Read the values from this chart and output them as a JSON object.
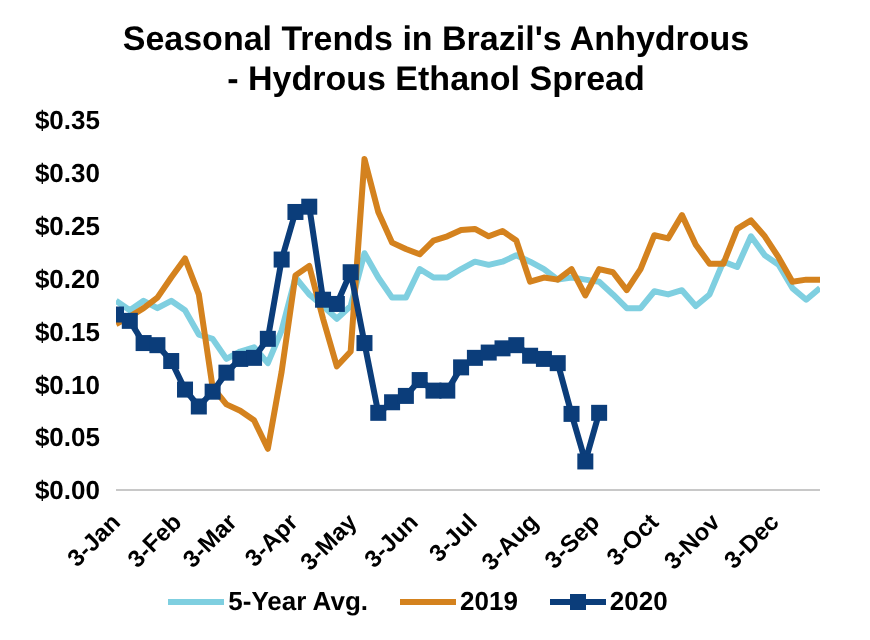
{
  "chart_data": {
    "type": "line",
    "title": "Seasonal Trends in Brazil's Anhydrous - Hydrous Ethanol Spread",
    "x": [
      "--01-03",
      "--01-10",
      "--01-17",
      "--01-24",
      "--01-31",
      "--02-07",
      "--02-14",
      "--02-21",
      "--02-28",
      "--03-07",
      "--03-14",
      "--03-21",
      "--03-28",
      "--04-04",
      "--04-11",
      "--04-18",
      "--04-25",
      "--05-02",
      "--05-09",
      "--05-16",
      "--05-23",
      "--05-30",
      "--06-06",
      "--06-13",
      "--06-20",
      "--06-27",
      "--07-04",
      "--07-11",
      "--07-18",
      "--07-25",
      "--08-01",
      "--08-08",
      "--08-15",
      "--08-22",
      "--08-29",
      "--09-05",
      "--09-12",
      "--09-19",
      "--09-26",
      "--10-03",
      "--10-10",
      "--10-17",
      "--10-24",
      "--10-31",
      "--11-07",
      "--11-14",
      "--11-21",
      "--11-28",
      "--12-05",
      "--12-12",
      "--12-19",
      "--12-26"
    ],
    "series": [
      {
        "name": "5-Year Avg.",
        "color": "#7fcfe0",
        "marker": "none",
        "values": [
          0.179,
          0.17,
          0.179,
          0.172,
          0.179,
          0.17,
          0.147,
          0.143,
          0.124,
          0.131,
          0.135,
          0.12,
          0.151,
          0.201,
          0.185,
          0.174,
          0.162,
          0.174,
          0.224,
          0.201,
          0.182,
          0.182,
          0.209,
          0.201,
          0.201,
          0.209,
          0.216,
          0.213,
          0.216,
          0.222,
          0.216,
          0.209,
          0.199,
          0.201,
          0.199,
          0.197,
          0.185,
          0.172,
          0.172,
          0.188,
          0.185,
          0.189,
          0.174,
          0.185,
          0.216,
          0.211,
          0.24,
          0.222,
          0.213,
          0.191,
          0.18,
          0.191
        ]
      },
      {
        "name": "2019",
        "color": "#d4821e",
        "marker": "none",
        "values": [
          0.157,
          0.164,
          0.172,
          0.182,
          0.201,
          0.219,
          0.185,
          0.097,
          0.081,
          0.075,
          0.066,
          0.039,
          0.112,
          0.203,
          0.212,
          0.162,
          0.117,
          0.131,
          0.313,
          0.263,
          0.234,
          0.228,
          0.223,
          0.236,
          0.24,
          0.246,
          0.247,
          0.24,
          0.245,
          0.236,
          0.197,
          0.201,
          0.199,
          0.209,
          0.184,
          0.209,
          0.206,
          0.189,
          0.209,
          0.241,
          0.238,
          0.26,
          0.232,
          0.214,
          0.214,
          0.247,
          0.255,
          0.24,
          0.22,
          0.197,
          0.199,
          0.199
        ]
      },
      {
        "name": "2020",
        "color": "#0b3d7a",
        "marker": "square",
        "values": [
          0.166,
          0.16,
          0.139,
          0.137,
          0.122,
          0.095,
          0.079,
          0.093,
          0.111,
          0.124,
          0.125,
          0.143,
          0.218,
          0.263,
          0.268,
          0.18,
          0.176,
          0.206,
          0.139,
          0.073,
          0.083,
          0.089,
          0.104,
          0.094,
          0.094,
          0.116,
          0.125,
          0.13,
          0.134,
          0.137,
          0.127,
          0.124,
          0.12,
          0.072,
          0.027,
          0.073,
          null,
          null,
          null,
          null,
          null,
          null,
          null,
          null,
          null,
          null,
          null,
          null,
          null,
          null,
          null,
          null
        ]
      }
    ],
    "xlim": [
      "--01-03",
      "--12-26"
    ],
    "xticks": [
      {
        "value": "--01-03",
        "label": "3-Jan"
      },
      {
        "value": "--02-03",
        "label": "3-Feb"
      },
      {
        "value": "--03-03",
        "label": "3-Mar"
      },
      {
        "value": "--04-03",
        "label": "3-Apr"
      },
      {
        "value": "--05-03",
        "label": "3-May"
      },
      {
        "value": "--06-03",
        "label": "3-Jun"
      },
      {
        "value": "--07-03",
        "label": "3-Jul"
      },
      {
        "value": "--08-03",
        "label": "3-Aug"
      },
      {
        "value": "--09-03",
        "label": "3-Sep"
      },
      {
        "value": "--10-03",
        "label": "3-Oct"
      },
      {
        "value": "--11-03",
        "label": "3-Nov"
      },
      {
        "value": "--12-03",
        "label": "3-Dec"
      }
    ],
    "ylim": [
      0,
      0.35
    ],
    "yticks": [
      {
        "value": 0,
        "label": "$0.00"
      },
      {
        "value": 0.05,
        "label": "$0.05"
      },
      {
        "value": 0.1,
        "label": "$0.10"
      },
      {
        "value": 0.15,
        "label": "$0.15"
      },
      {
        "value": 0.2,
        "label": "$0.20"
      },
      {
        "value": 0.25,
        "label": "$0.25"
      },
      {
        "value": 0.3,
        "label": "$0.30"
      },
      {
        "value": 0.35,
        "label": "$0.35"
      }
    ],
    "grid": false,
    "legend": "bottom",
    "line_style": "solid"
  }
}
